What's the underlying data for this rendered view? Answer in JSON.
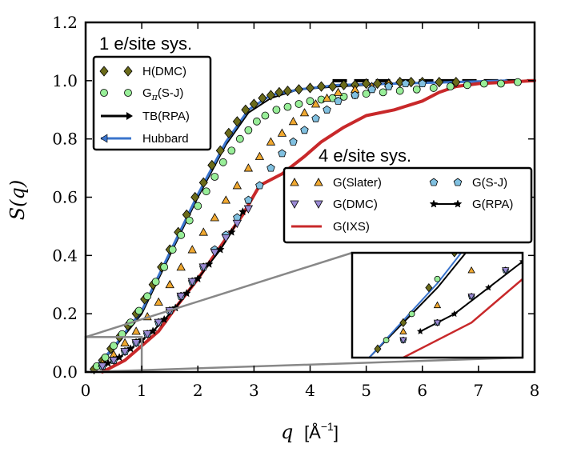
{
  "chart_data": {
    "type": "scatter",
    "xlabel_prefix": "q",
    "xlabel_unit": "[Å",
    "xlabel_exp": "−1",
    "xlabel_close": "]",
    "ylabel": "S(q)",
    "xlim": [
      0,
      8
    ],
    "ylim": [
      0,
      1.2
    ],
    "xticks": [
      "0",
      "1",
      "2",
      "3",
      "4",
      "5",
      "6",
      "7",
      "8"
    ],
    "yticks": [
      "0.0",
      "0.2",
      "0.4",
      "0.6",
      "0.8",
      "1.0",
      "1.2"
    ],
    "reference_line": {
      "y": 1.0,
      "x_from": 4.4,
      "x_to": 8.0,
      "style": "dashed",
      "color": "#000000"
    },
    "annotations": [
      "1 e/site sys.",
      "4 e/site sys."
    ],
    "legend_1e": [
      {
        "label": "H(DMC)",
        "marker": "diamond",
        "color": "#6b6b1a"
      },
      {
        "label_main": "G",
        "label_sub": "π",
        "label_rest": "(S-J)",
        "marker": "circle",
        "color": "#98ee98"
      },
      {
        "label": "TB(RPA)",
        "marker": "line-arrow",
        "color": "#000000"
      },
      {
        "label": "Hubbard",
        "marker": "line-triangle",
        "color": "#3a74cc"
      }
    ],
    "legend_4e": [
      {
        "label": "G(Slater)",
        "marker": "triangle-up",
        "color": "#f0a830"
      },
      {
        "label": "G(S-J)",
        "marker": "pentagon",
        "color": "#80c0e0"
      },
      {
        "label": "G(DMC)",
        "marker": "triangle-down",
        "color": "#9a8ad4"
      },
      {
        "label": "G(RPA)",
        "marker": "star-line",
        "color": "#000000"
      },
      {
        "label": "G(IXS)",
        "marker": "line",
        "color": "#c8282a"
      }
    ],
    "inset": {
      "x_range": [
        0,
        1
      ],
      "y_range": [
        0,
        0.12
      ]
    },
    "series": [
      {
        "name": "H(DMC)",
        "marker": "diamond",
        "color": "#6b6b1a",
        "x": [
          0.15,
          0.3,
          0.45,
          0.6,
          0.75,
          0.9,
          1.05,
          1.2,
          1.35,
          1.5,
          1.65,
          1.8,
          1.95,
          2.1,
          2.25,
          2.4,
          2.55,
          2.7,
          2.85,
          3.0,
          3.15,
          3.3,
          3.45,
          3.6,
          3.8,
          4.0,
          4.2,
          4.4,
          4.6,
          4.8,
          5.0,
          5.2,
          5.4,
          5.6,
          5.8,
          6.0,
          6.3,
          6.6
        ],
        "y": [
          0.01,
          0.04,
          0.08,
          0.12,
          0.16,
          0.2,
          0.25,
          0.3,
          0.36,
          0.42,
          0.48,
          0.54,
          0.6,
          0.65,
          0.71,
          0.76,
          0.82,
          0.86,
          0.9,
          0.92,
          0.94,
          0.95,
          0.96,
          0.965,
          0.97,
          0.975,
          0.98,
          0.98,
          0.985,
          0.985,
          0.99,
          0.99,
          0.99,
          0.995,
          0.995,
          0.995,
          0.995,
          0.995
        ]
      },
      {
        "name": "Gπ(S-J)",
        "marker": "circle",
        "color": "#98ee98",
        "x": [
          0.2,
          0.35,
          0.5,
          0.65,
          0.8,
          0.95,
          1.1,
          1.25,
          1.4,
          1.55,
          1.7,
          1.85,
          2.0,
          2.15,
          2.3,
          2.45,
          2.6,
          2.75,
          2.9,
          3.05,
          3.2,
          3.4,
          3.6,
          3.8,
          4.0,
          4.2,
          4.4,
          4.6,
          4.8,
          5.0,
          5.3,
          5.6,
          5.9,
          6.2,
          6.5,
          6.8,
          7.1,
          7.4,
          7.7
        ],
        "y": [
          0.02,
          0.05,
          0.09,
          0.13,
          0.17,
          0.21,
          0.26,
          0.31,
          0.36,
          0.42,
          0.47,
          0.52,
          0.57,
          0.62,
          0.67,
          0.72,
          0.76,
          0.8,
          0.83,
          0.86,
          0.88,
          0.9,
          0.91,
          0.92,
          0.93,
          0.935,
          0.94,
          0.945,
          0.95,
          0.955,
          0.96,
          0.965,
          0.97,
          0.975,
          0.98,
          0.985,
          0.99,
          0.99,
          0.995
        ]
      },
      {
        "name": "TB(RPA)",
        "marker": "line",
        "color": "#000000",
        "x": [
          0.1,
          0.5,
          1.0,
          1.5,
          2.0,
          2.5,
          2.9,
          3.3,
          3.8,
          4.5,
          5.5,
          6.5,
          7.5
        ],
        "y": [
          0.0,
          0.08,
          0.2,
          0.4,
          0.6,
          0.78,
          0.89,
          0.94,
          0.97,
          0.98,
          0.99,
          0.995,
          1.0
        ]
      },
      {
        "name": "Hubbard",
        "marker": "line",
        "color": "#3a74cc",
        "x": [
          0.1,
          0.5,
          1.0,
          1.5,
          2.0,
          2.5,
          2.9,
          3.3,
          3.8,
          4.5,
          5.5,
          6.5,
          7.5
        ],
        "y": [
          0.0,
          0.085,
          0.21,
          0.41,
          0.61,
          0.79,
          0.9,
          0.95,
          0.97,
          0.985,
          0.99,
          0.995,
          1.0
        ]
      },
      {
        "name": "G(Slater)",
        "marker": "triangle-up",
        "color": "#f0a830",
        "x": [
          0.3,
          0.5,
          0.7,
          0.9,
          1.1,
          1.3,
          1.5,
          1.7,
          1.9,
          2.1,
          2.3,
          2.5,
          2.7,
          2.9,
          3.1,
          3.3,
          3.5,
          3.7,
          3.9,
          4.1,
          4.3,
          4.5,
          4.8,
          5.1,
          5.4
        ],
        "y": [
          0.03,
          0.06,
          0.1,
          0.14,
          0.19,
          0.24,
          0.3,
          0.36,
          0.42,
          0.48,
          0.53,
          0.59,
          0.64,
          0.7,
          0.74,
          0.79,
          0.82,
          0.86,
          0.89,
          0.92,
          0.94,
          0.96,
          0.97,
          0.98,
          0.99
        ]
      },
      {
        "name": "G(S-J)",
        "marker": "pentagon",
        "color": "#80c0e0",
        "x": [
          0.3,
          0.5,
          0.7,
          0.9,
          1.1,
          1.3,
          1.5,
          1.7,
          1.9,
          2.1,
          2.3,
          2.5,
          2.7,
          2.9,
          3.1,
          3.3,
          3.5,
          3.7,
          3.9,
          4.1,
          4.3,
          4.5,
          4.8,
          5.1,
          5.4,
          5.7,
          6.0
        ],
        "y": [
          0.02,
          0.04,
          0.07,
          0.1,
          0.13,
          0.17,
          0.21,
          0.26,
          0.31,
          0.36,
          0.42,
          0.47,
          0.53,
          0.59,
          0.64,
          0.7,
          0.75,
          0.79,
          0.83,
          0.87,
          0.9,
          0.93,
          0.95,
          0.97,
          0.98,
          0.99,
          0.99
        ]
      },
      {
        "name": "G(DMC)",
        "marker": "triangle-down",
        "color": "#9a8ad4",
        "x": [
          0.3,
          0.5,
          0.7,
          0.9,
          1.1,
          1.3,
          1.5,
          1.7,
          1.9,
          2.1,
          2.3,
          2.5,
          2.7,
          2.9
        ],
        "y": [
          0.02,
          0.04,
          0.07,
          0.1,
          0.13,
          0.17,
          0.21,
          0.26,
          0.31,
          0.36,
          0.41,
          0.46,
          0.51,
          0.56
        ]
      },
      {
        "name": "G(RPA)",
        "marker": "star-line",
        "color": "#000000",
        "x": [
          0.4,
          0.6,
          0.8,
          1.0,
          1.2,
          1.4,
          1.6,
          1.8,
          2.0,
          2.2,
          2.4,
          2.6,
          2.8
        ],
        "y": [
          0.03,
          0.05,
          0.08,
          0.11,
          0.14,
          0.18,
          0.22,
          0.27,
          0.32,
          0.37,
          0.42,
          0.48,
          0.55
        ]
      },
      {
        "name": "G(IXS)",
        "marker": "line",
        "color": "#c8282a",
        "x": [
          0.3,
          0.7,
          1.0,
          1.3,
          1.6,
          2.0,
          2.4,
          2.8,
          3.1,
          3.5,
          3.9,
          4.2,
          4.6,
          5.0,
          5.5,
          6.0,
          6.3,
          6.6,
          7.0,
          7.5,
          8.0
        ],
        "y": [
          0.0,
          0.04,
          0.09,
          0.14,
          0.22,
          0.32,
          0.43,
          0.54,
          0.64,
          0.68,
          0.74,
          0.79,
          0.84,
          0.88,
          0.9,
          0.93,
          0.96,
          0.98,
          0.99,
          0.995,
          1.0
        ]
      }
    ]
  }
}
